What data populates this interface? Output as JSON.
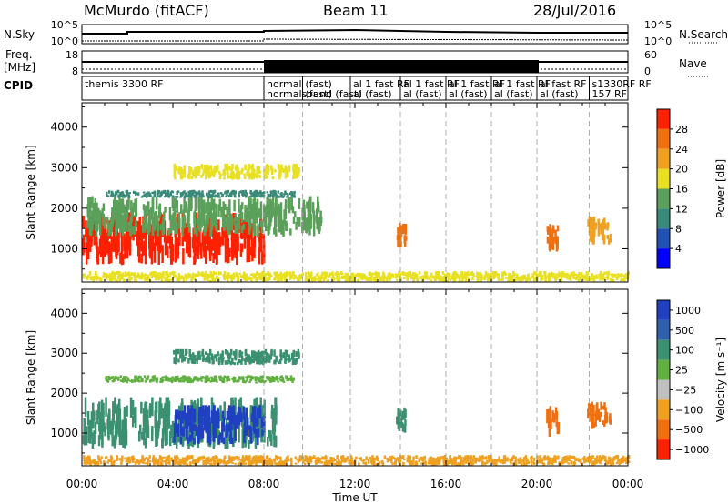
{
  "header": {
    "station": "McMurdo (fitACF)",
    "beam": "Beam 11",
    "date": "28/Jul/2016"
  },
  "strips": {
    "nsky_label": "N.Sky",
    "nsky_ticks": [
      "10^5",
      "10^0"
    ],
    "nsearch_label": "N.Search",
    "nsearch_ticks": [
      "10^5",
      "10^0"
    ],
    "freq_label_1": "Freq.",
    "freq_label_2": "[MHz]",
    "freq_ticks": [
      "18",
      "8"
    ],
    "nave_label": "Nave",
    "nave_ticks": [
      "60",
      "0"
    ],
    "cpid_label": "CPID",
    "cpid_segments": [
      {
        "start_h": 0,
        "end_h": 8,
        "lines": [
          "themis 3300 RF"
        ]
      },
      {
        "start_h": 8,
        "end_h": 9.7,
        "lines": [
          "normal",
          "normalsound (fast)"
        ]
      },
      {
        "start_h": 9.7,
        "end_h": 11.8,
        "lines": [
          "(fast)",
          "(fast)"
        ]
      },
      {
        "start_h": 11.8,
        "end_h": 14,
        "lines": [
          "al 1 fast RF",
          "al (fast)"
        ]
      },
      {
        "start_h": 14,
        "end_h": 16,
        "lines": [
          "al 1 fast RF",
          "al (fast)"
        ]
      },
      {
        "start_h": 16,
        "end_h": 18,
        "lines": [
          "al 1 fast RF",
          "al (fast)"
        ]
      },
      {
        "start_h": 18,
        "end_h": 20,
        "lines": [
          "al 1 fast RF",
          "al (fast)"
        ]
      },
      {
        "start_h": 20,
        "end_h": 22.3,
        "lines": [
          "al fast RF",
          "al (fast)"
        ]
      },
      {
        "start_h": 22.3,
        "end_h": 24,
        "lines": [
          "s1330RF RF",
          "157 RF"
        ]
      }
    ]
  },
  "chart_data": [
    {
      "type": "heatmap",
      "name": "power",
      "xlabel": "Time UT",
      "ylabel": "Slant Range [km]",
      "xlim": [
        0,
        24
      ],
      "ylim": [
        180,
        4600
      ],
      "xticks": [
        "00:00",
        "04:00",
        "08:00",
        "12:00",
        "16:00",
        "20:00",
        "00:00"
      ],
      "yticks": [
        1000,
        2000,
        3000,
        4000
      ],
      "colorbar": {
        "label": "Power [dB]",
        "ticks": [
          "4",
          "8",
          "12",
          "16",
          "20",
          "24",
          "28"
        ],
        "colors": [
          "#0000ff",
          "#1f52b4",
          "#3a8a7a",
          "#5aa05a",
          "#e8e020",
          "#f0a020",
          "#f07010",
          "#ff2000"
        ]
      },
      "regions": [
        {
          "t0": 0,
          "t1": 8,
          "r0": 600,
          "r1": 1900,
          "level": 28
        },
        {
          "t0": 0.2,
          "t1": 10.5,
          "r0": 1300,
          "r1": 2300,
          "level": 12
        },
        {
          "t0": 1,
          "t1": 9.3,
          "r0": 2250,
          "r1": 2450,
          "level": 8
        },
        {
          "t0": 4,
          "t1": 9.5,
          "r0": 2700,
          "r1": 3100,
          "level": 16
        },
        {
          "t0": 13.8,
          "t1": 14.2,
          "r0": 1000,
          "r1": 1700,
          "level": 24
        },
        {
          "t0": 20.4,
          "t1": 20.9,
          "r0": 900,
          "r1": 1700,
          "level": 24
        },
        {
          "t0": 22.2,
          "t1": 23.2,
          "r0": 1100,
          "r1": 1800,
          "level": 20
        },
        {
          "t0": 0,
          "t1": 24,
          "r0": 180,
          "r1": 450,
          "level": 16
        }
      ]
    },
    {
      "type": "heatmap",
      "name": "velocity",
      "xlabel": "Time UT",
      "ylabel": "Slant Range [km]",
      "xlim": [
        0,
        24
      ],
      "ylim": [
        180,
        4600
      ],
      "xticks": [
        "00:00",
        "04:00",
        "08:00",
        "12:00",
        "16:00",
        "20:00",
        "00:00"
      ],
      "yticks": [
        1000,
        2000,
        3000,
        4000
      ],
      "colorbar": {
        "label": "Velocity [m s⁻¹]",
        "ticks": [
          "1000",
          "500",
          "100",
          "25",
          "−25",
          "−100",
          "−500",
          "−1000"
        ],
        "colors": [
          "#1f40c0",
          "#2f60b0",
          "#3a9070",
          "#60b040",
          "#c0c0c0",
          "#f0a020",
          "#f07010",
          "#ff2000"
        ]
      },
      "regions": [
        {
          "t0": 0,
          "t1": 8.5,
          "r0": 600,
          "r1": 1900,
          "level": 100
        },
        {
          "t0": 4,
          "t1": 8,
          "r0": 700,
          "r1": 1700,
          "level": 1000
        },
        {
          "t0": 1,
          "t1": 9.3,
          "r0": 2250,
          "r1": 2450,
          "level": 25
        },
        {
          "t0": 4,
          "t1": 9.5,
          "r0": 2700,
          "r1": 3100,
          "level": 100
        },
        {
          "t0": 13.8,
          "t1": 14.2,
          "r0": 1000,
          "r1": 1700,
          "level": 100
        },
        {
          "t0": 20.4,
          "t1": 20.9,
          "r0": 900,
          "r1": 1700,
          "level": -500
        },
        {
          "t0": 22.2,
          "t1": 23.2,
          "r0": 1100,
          "r1": 1800,
          "level": -500
        },
        {
          "t0": 0,
          "t1": 24,
          "r0": 180,
          "r1": 450,
          "level": -100
        }
      ]
    }
  ]
}
